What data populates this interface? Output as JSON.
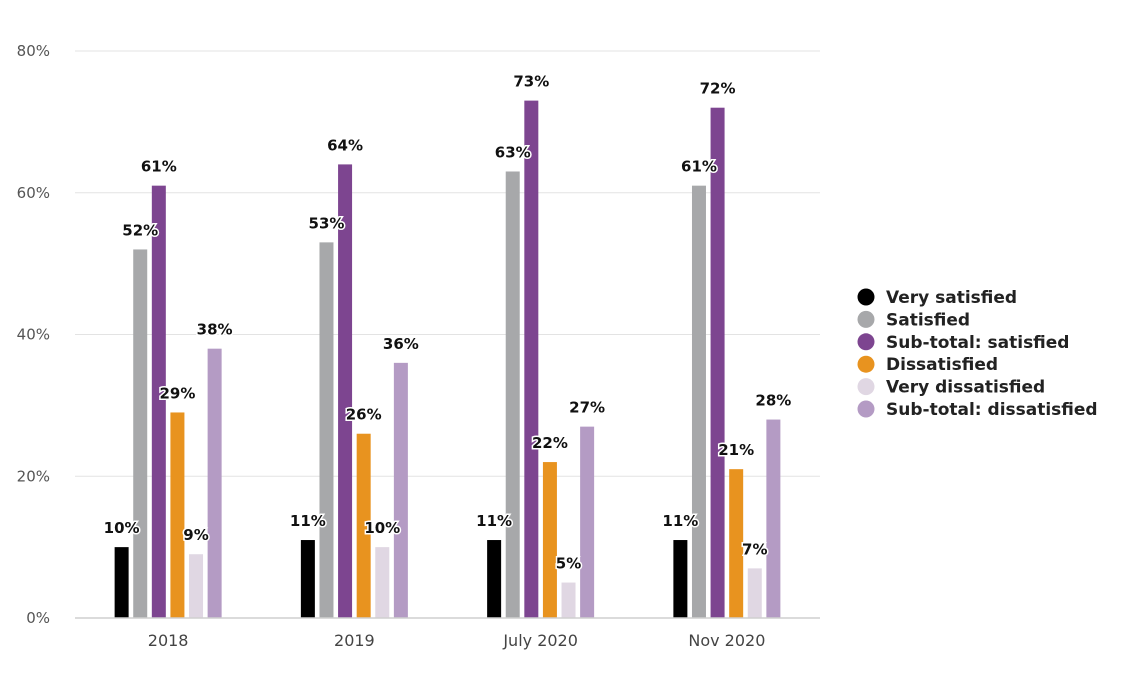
{
  "chart_data": {
    "type": "bar",
    "categories": [
      "2018",
      "2019",
      "July 2020",
      "Nov 2020"
    ],
    "series": [
      {
        "name": "Very satisfied",
        "color": "#000000",
        "values": [
          10,
          11,
          11,
          11
        ]
      },
      {
        "name": "Satisfied",
        "color": "#a7a8aa",
        "values": [
          52,
          53,
          63,
          61
        ]
      },
      {
        "name": "Sub-total: satisfied",
        "color": "#7d4590",
        "values": [
          61,
          64,
          73,
          72
        ]
      },
      {
        "name": "Dissatisfied",
        "color": "#e8931f",
        "values": [
          29,
          26,
          22,
          21
        ]
      },
      {
        "name": "Very dissatisfied",
        "color": "#e0d7e3",
        "values": [
          9,
          10,
          5,
          7
        ]
      },
      {
        "name": "Sub-total: dissatisfied",
        "color": "#b49bc4",
        "values": [
          38,
          36,
          27,
          28
        ]
      }
    ],
    "data_labels": [
      [
        "10%",
        "52%",
        "61%",
        "29%",
        "9%",
        "38%"
      ],
      [
        "11%",
        "53%",
        "64%",
        "26%",
        "10%",
        "36%"
      ],
      [
        "11%",
        "63%",
        "73%",
        "22%",
        "5%",
        "27%"
      ],
      [
        "11%",
        "61%",
        "72%",
        "21%",
        "7%",
        "28%"
      ]
    ],
    "y_ticks": [
      "0%",
      "20%",
      "40%",
      "60%",
      "80%"
    ],
    "y_tick_values": [
      0,
      20,
      40,
      60,
      80
    ],
    "ylim": [
      0,
      80
    ],
    "grid": true,
    "legend_position": "right",
    "title": "",
    "xlabel": "",
    "ylabel": ""
  }
}
